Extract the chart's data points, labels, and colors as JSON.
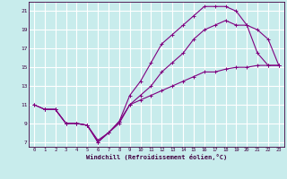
{
  "title": "",
  "xlabel": "Windchill (Refroidissement éolien,°C)",
  "ylabel": "",
  "bg_color": "#c8ecec",
  "grid_color": "#ffffff",
  "line_color": "#800080",
  "xlim": [
    -0.5,
    23.5
  ],
  "ylim": [
    6.5,
    22
  ],
  "xticks": [
    0,
    1,
    2,
    3,
    4,
    5,
    6,
    7,
    8,
    9,
    10,
    11,
    12,
    13,
    14,
    15,
    16,
    17,
    18,
    19,
    20,
    21,
    22,
    23
  ],
  "yticks": [
    7,
    9,
    11,
    13,
    15,
    17,
    19,
    21
  ],
  "line1_x": [
    0,
    1,
    2,
    3,
    4,
    5,
    6,
    7,
    8,
    9,
    10,
    11,
    12,
    13,
    14,
    15,
    16,
    17,
    18,
    19,
    20,
    21,
    22,
    23
  ],
  "line1_y": [
    11,
    10.5,
    10.5,
    9,
    9,
    8.8,
    7,
    8,
    9.2,
    12,
    13.5,
    15.5,
    17.5,
    18.5,
    19.5,
    20.5,
    21.5,
    21.5,
    21.5,
    21,
    19.5,
    16.5,
    15.2,
    15.2
  ],
  "line2_x": [
    0,
    1,
    2,
    3,
    4,
    5,
    6,
    7,
    8,
    9,
    10,
    11,
    12,
    13,
    14,
    15,
    16,
    17,
    18,
    19,
    20,
    21,
    22,
    23
  ],
  "line2_y": [
    11,
    10.5,
    10.5,
    9,
    9,
    8.8,
    7,
    8,
    9,
    11,
    12,
    13,
    14.5,
    15.5,
    16.5,
    18,
    19,
    19.5,
    20,
    19.5,
    19.5,
    19,
    18,
    15.2
  ],
  "line3_x": [
    1,
    2,
    3,
    4,
    5,
    6,
    7,
    8,
    9,
    10,
    11,
    12,
    13,
    14,
    15,
    16,
    17,
    18,
    19,
    20,
    21,
    22,
    23
  ],
  "line3_y": [
    10.5,
    10.5,
    9,
    9,
    8.8,
    7.2,
    8,
    9.2,
    11,
    11.5,
    12,
    12.5,
    13,
    13.5,
    14,
    14.5,
    14.5,
    14.8,
    15,
    15,
    15.2,
    15.2,
    15.2
  ]
}
